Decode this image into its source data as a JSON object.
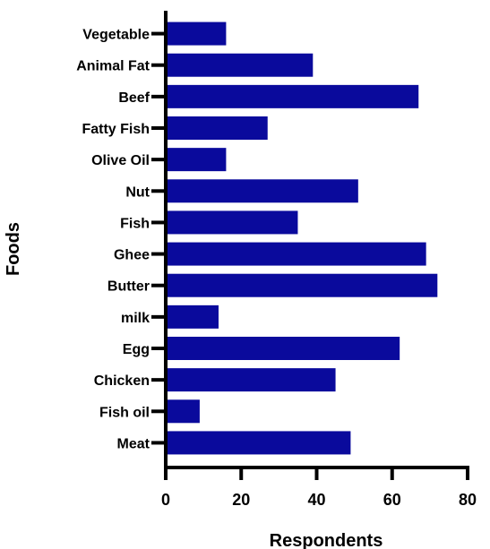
{
  "chart_data": {
    "type": "bar",
    "orientation": "horizontal",
    "xlabel": "Respondents",
    "ylabel": "Foods",
    "xlim": [
      0,
      80
    ],
    "xticks": [
      "0",
      "20",
      "40",
      "60",
      "80"
    ],
    "categories": [
      "Vegetable",
      "Animal Fat",
      "Beef",
      "Fatty Fish",
      "Olive Oil",
      "Nut",
      "Fish",
      "Ghee",
      "Butter",
      "milk",
      "Egg",
      "Chicken",
      "Fish oil",
      "Meat"
    ],
    "values": [
      16,
      39,
      67,
      27,
      16,
      51,
      35,
      69,
      72,
      14,
      62,
      45,
      9,
      49
    ],
    "bar_color": "#0a0a9c",
    "grid": false,
    "legend": "none"
  }
}
